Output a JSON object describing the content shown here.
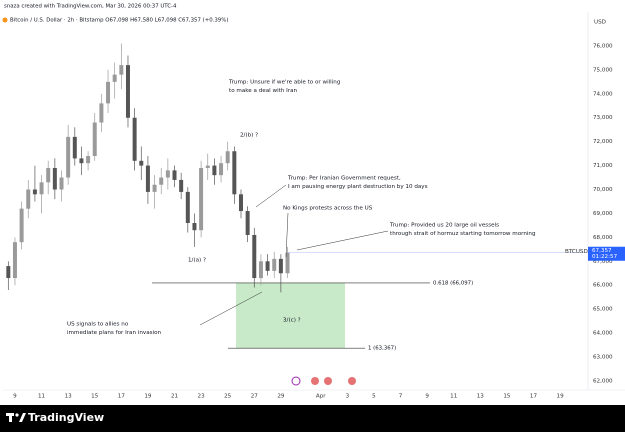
{
  "header": {
    "credit": "snaza created with TradingView.com, Mar 30, 2026 00:37 UTC-4",
    "legend": "Bitcoin / U.S. Dollar · 2h · Bitstamp  O67,098  H67,580  L67,098  C67,357  (+0.39%)"
  },
  "footer": {
    "brand": "TradingView"
  },
  "chart_data": {
    "type": "candlestick",
    "currency": "USD",
    "x": [
      8.5,
      9,
      9.5,
      10,
      10.5,
      11,
      11.5,
      12,
      12.5,
      13,
      13.5,
      14,
      14.5,
      15,
      15.5,
      16,
      16.5,
      17,
      17.5,
      18,
      18.5,
      19,
      19.5,
      20,
      20.5,
      21,
      21.5,
      22,
      22.5,
      23,
      23.5,
      24,
      24.5,
      25,
      25.5,
      26,
      26.5,
      27,
      27.5,
      28,
      28.5,
      29,
      29.5
    ],
    "open": [
      66800,
      66300,
      67800,
      69200,
      70000,
      69800,
      70300,
      70900,
      70000,
      70500,
      72200,
      71300,
      71100,
      71400,
      72800,
      73600,
      74500,
      74800,
      75200,
      73000,
      71200,
      71000,
      69900,
      70200,
      70500,
      70800,
      70400,
      69900,
      68600,
      68300,
      70900,
      71000,
      70600,
      71100,
      71600,
      69800,
      69100,
      68100,
      66300,
      67000,
      66600,
      67100,
      66500
    ],
    "high": [
      67000,
      68000,
      69500,
      70400,
      71000,
      70600,
      71200,
      71300,
      70800,
      72700,
      72600,
      71800,
      71600,
      73200,
      74000,
      75000,
      75300,
      76100,
      75600,
      73400,
      71800,
      71400,
      70600,
      70900,
      71300,
      71000,
      70700,
      70100,
      69000,
      71200,
      71500,
      71300,
      71400,
      72000,
      71800,
      70000,
      69300,
      68400,
      67300,
      67300,
      67400,
      67300,
      67600
    ],
    "low": [
      65800,
      66000,
      67500,
      68800,
      69500,
      69000,
      69800,
      69600,
      69500,
      70200,
      71000,
      70600,
      70800,
      71200,
      72400,
      73200,
      73800,
      74200,
      72600,
      70800,
      70400,
      69400,
      69200,
      69800,
      70000,
      70100,
      69600,
      68200,
      67600,
      68000,
      70400,
      70200,
      70300,
      70800,
      69400,
      68800,
      67800,
      65900,
      66000,
      66400,
      66300,
      65700,
      66300
    ],
    "close": [
      66300,
      67800,
      69200,
      70000,
      69800,
      70300,
      70900,
      70000,
      70500,
      72200,
      71300,
      71100,
      71400,
      72800,
      73600,
      74500,
      74800,
      75200,
      73000,
      71200,
      71000,
      69900,
      70200,
      70500,
      70800,
      70400,
      69900,
      68600,
      68300,
      70900,
      71000,
      70600,
      71100,
      71600,
      69800,
      69100,
      68100,
      66300,
      67000,
      66600,
      67100,
      66500,
      67357
    ],
    "up_color": "#9a9a9a",
    "down_color": "#555555",
    "xlim": [
      8.1,
      52.1
    ],
    "xticks": [
      9,
      11,
      13,
      15,
      17,
      19,
      21,
      23,
      25,
      27,
      29,
      {
        "value": 32,
        "label": "Apr"
      },
      {
        "value": 34,
        "label": "3"
      },
      {
        "value": 36,
        "label": "5"
      },
      {
        "value": 38,
        "label": "7"
      },
      {
        "value": 40,
        "label": "9"
      },
      {
        "value": 42,
        "label": "11"
      },
      {
        "value": 44,
        "label": "13"
      },
      {
        "value": 46,
        "label": "15"
      },
      {
        "value": 48,
        "label": "17"
      },
      {
        "value": 50,
        "label": "19"
      }
    ],
    "ylim": [
      61620,
      77420
    ],
    "yticks": [
      {
        "value": 62000,
        "label": "62,000"
      },
      {
        "value": 63000,
        "label": "63,000"
      },
      {
        "value": 64000,
        "label": "64,000"
      },
      {
        "value": 65000,
        "label": "65,000"
      },
      {
        "value": 66000,
        "label": "66,000"
      },
      {
        "value": 67000,
        "label": "67,000"
      },
      {
        "value": 68000,
        "label": "68,000"
      },
      {
        "value": 69000,
        "label": "69,000"
      },
      {
        "value": 70000,
        "label": "70,000"
      },
      {
        "value": 71000,
        "label": "71,000"
      },
      {
        "value": 72000,
        "label": "72,000"
      },
      {
        "value": 73000,
        "label": "73,000"
      },
      {
        "value": 74000,
        "label": "74,000"
      },
      {
        "value": 75000,
        "label": "75,000"
      },
      {
        "value": 76000,
        "label": "76,000"
      }
    ],
    "last_price": {
      "value": 67357,
      "label": "67,357",
      "symbol": "BTCUSD",
      "countdown": "01:22:57"
    },
    "levels": [
      {
        "value": 66097,
        "label": "0.618 (66,097)"
      },
      {
        "value": 63367,
        "label": "1 (63,367)"
      }
    ],
    "zone_color": "#c8eac8",
    "annotations": [
      {
        "lines": [
          "Trump: Unsure if we're able to or willing",
          "to make a deal with Iran"
        ]
      },
      {
        "lines": [
          "2/(b) ?"
        ]
      },
      {
        "lines": [
          "Trump: Per Iranian Government request,",
          "I am pausing energy plant destruction by 10 days"
        ]
      },
      {
        "lines": [
          "No Kings protests across the US"
        ]
      },
      {
        "lines": [
          "Trump: Provided us 20 large oil vessels",
          "through strait of hormuz starting tomorrow morning"
        ]
      },
      {
        "lines": [
          "1/(a) ?"
        ]
      },
      {
        "lines": [
          "3/(c) ?"
        ]
      },
      {
        "lines": [
          "US signals to allies no",
          "immediate plans for Iran invasion"
        ]
      }
    ]
  }
}
